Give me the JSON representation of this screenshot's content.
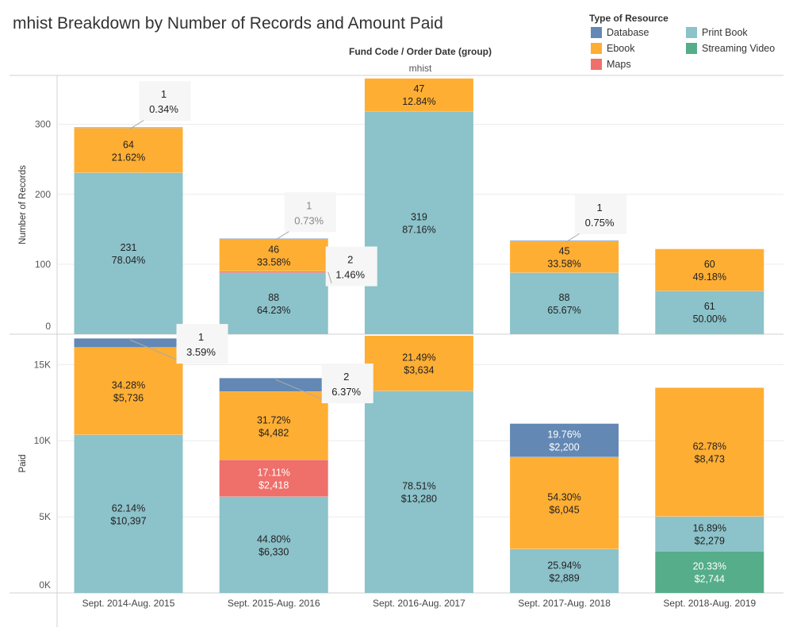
{
  "title": "mhist Breakdown by Number of Records and Amount Paid",
  "header": {
    "title": "Fund Code / Order Date (group)",
    "subtitle": "mhist"
  },
  "legend": {
    "title": "Type of Resource",
    "items": [
      {
        "label": "Database",
        "color": "#6388b4"
      },
      {
        "label": "Print Book",
        "color": "#8cc2ca"
      },
      {
        "label": "Ebook",
        "color": "#ffae34"
      },
      {
        "label": "Streaming Video",
        "color": "#55ad89"
      },
      {
        "label": "Maps",
        "color": "#ef6f6a"
      }
    ]
  },
  "chart_data": [
    {
      "type": "bar",
      "stacked": true,
      "title": "",
      "ylabel": "Number of Records",
      "ylim": [
        0,
        370
      ],
      "yticks": [
        0,
        100,
        200,
        300
      ],
      "ytick_labels": [
        "0",
        "100",
        "200",
        "300"
      ],
      "grid": true,
      "categories": [
        "Sept. 2014-Aug. 2015",
        "Sept. 2015-Aug. 2016",
        "Sept. 2016-Aug. 2017",
        "Sept. 2017-Aug. 2018",
        "Sept. 2018-Aug. 2019"
      ],
      "series": [
        {
          "name": "Streaming Video",
          "color": "#55ad89",
          "values": [
            0,
            0,
            0,
            0,
            1
          ],
          "labels": [
            null,
            null,
            null,
            null,
            null
          ]
        },
        {
          "name": "Print Book",
          "color": "#8cc2ca",
          "values": [
            231,
            88,
            319,
            88,
            61
          ],
          "labels": [
            [
              "231",
              "78.04%"
            ],
            [
              "88",
              "64.23%"
            ],
            [
              "319",
              "87.16%"
            ],
            [
              "88",
              "65.67%"
            ],
            [
              "61",
              "50.00%"
            ]
          ]
        },
        {
          "name": "Maps",
          "color": "#ef6f6a",
          "values": [
            0,
            2,
            0,
            0,
            0
          ],
          "labels": [
            null,
            null,
            null,
            null,
            null
          ]
        },
        {
          "name": "Ebook",
          "color": "#ffae34",
          "values": [
            64,
            46,
            47,
            45,
            60
          ],
          "labels": [
            [
              "64",
              "21.62%"
            ],
            [
              "46",
              "33.58%"
            ],
            [
              "47",
              "12.84%"
            ],
            [
              "45",
              "33.58%"
            ],
            [
              "60",
              "49.18%"
            ]
          ]
        },
        {
          "name": "Database",
          "color": "#6388b4",
          "values": [
            1,
            1,
            0,
            1,
            0
          ],
          "labels": [
            null,
            null,
            null,
            null,
            null
          ]
        }
      ],
      "callouts": [
        {
          "category": 0,
          "series": "Database",
          "lines": [
            "1",
            "0.34%"
          ]
        },
        {
          "category": 1,
          "series": "Database",
          "lines": [
            "1",
            "0.73%"
          ],
          "muted": true
        },
        {
          "category": 1,
          "series": "Maps",
          "lines": [
            "2",
            "1.46%"
          ]
        },
        {
          "category": 3,
          "series": "Database",
          "lines": [
            "1",
            "0.75%"
          ]
        }
      ]
    },
    {
      "type": "bar",
      "stacked": true,
      "title": "",
      "ylabel": "Paid",
      "ylim": [
        0,
        17000
      ],
      "yticks": [
        0,
        5000,
        10000,
        15000
      ],
      "ytick_labels": [
        "0K",
        "5K",
        "10K",
        "15K"
      ],
      "grid": true,
      "categories": [
        "Sept. 2014-Aug. 2015",
        "Sept. 2015-Aug. 2016",
        "Sept. 2016-Aug. 2017",
        "Sept. 2017-Aug. 2018",
        "Sept. 2018-Aug. 2019"
      ],
      "series": [
        {
          "name": "Streaming Video",
          "color": "#55ad89",
          "values": [
            0,
            0,
            0,
            0,
            2744
          ],
          "labels": [
            null,
            null,
            null,
            null,
            [
              "20.33%",
              "$2,744"
            ]
          ]
        },
        {
          "name": "Print Book",
          "color": "#8cc2ca",
          "values": [
            10397,
            6330,
            13280,
            2889,
            2279
          ],
          "labels": [
            [
              "62.14%",
              "$10,397"
            ],
            [
              "44.80%",
              "$6,330"
            ],
            [
              "78.51%",
              "$13,280"
            ],
            [
              "25.94%",
              "$2,889"
            ],
            [
              "16.89%",
              "$2,279"
            ]
          ]
        },
        {
          "name": "Maps",
          "color": "#ef6f6a",
          "values": [
            0,
            2418,
            0,
            0,
            0
          ],
          "labels": [
            null,
            [
              "17.11%",
              "$2,418"
            ],
            null,
            null,
            null
          ]
        },
        {
          "name": "Ebook",
          "color": "#ffae34",
          "values": [
            5736,
            4482,
            3634,
            6045,
            8473
          ],
          "labels": [
            [
              "34.28%",
              "$5,736"
            ],
            [
              "31.72%",
              "$4,482"
            ],
            [
              "21.49%",
              "$3,634"
            ],
            [
              "54.30%",
              "$6,045"
            ],
            [
              "62.78%",
              "$8,473"
            ]
          ]
        },
        {
          "name": "Database",
          "color": "#6388b4",
          "values": [
            600,
            900,
            0,
            2200,
            0
          ],
          "labels": [
            null,
            null,
            null,
            [
              "19.76%",
              "$2,200"
            ],
            null
          ]
        }
      ],
      "callouts": [
        {
          "category": 0,
          "series": "Database",
          "lines": [
            "1",
            "3.59%"
          ]
        },
        {
          "category": 1,
          "series": "Database",
          "lines": [
            "2",
            "6.37%"
          ]
        }
      ]
    }
  ]
}
